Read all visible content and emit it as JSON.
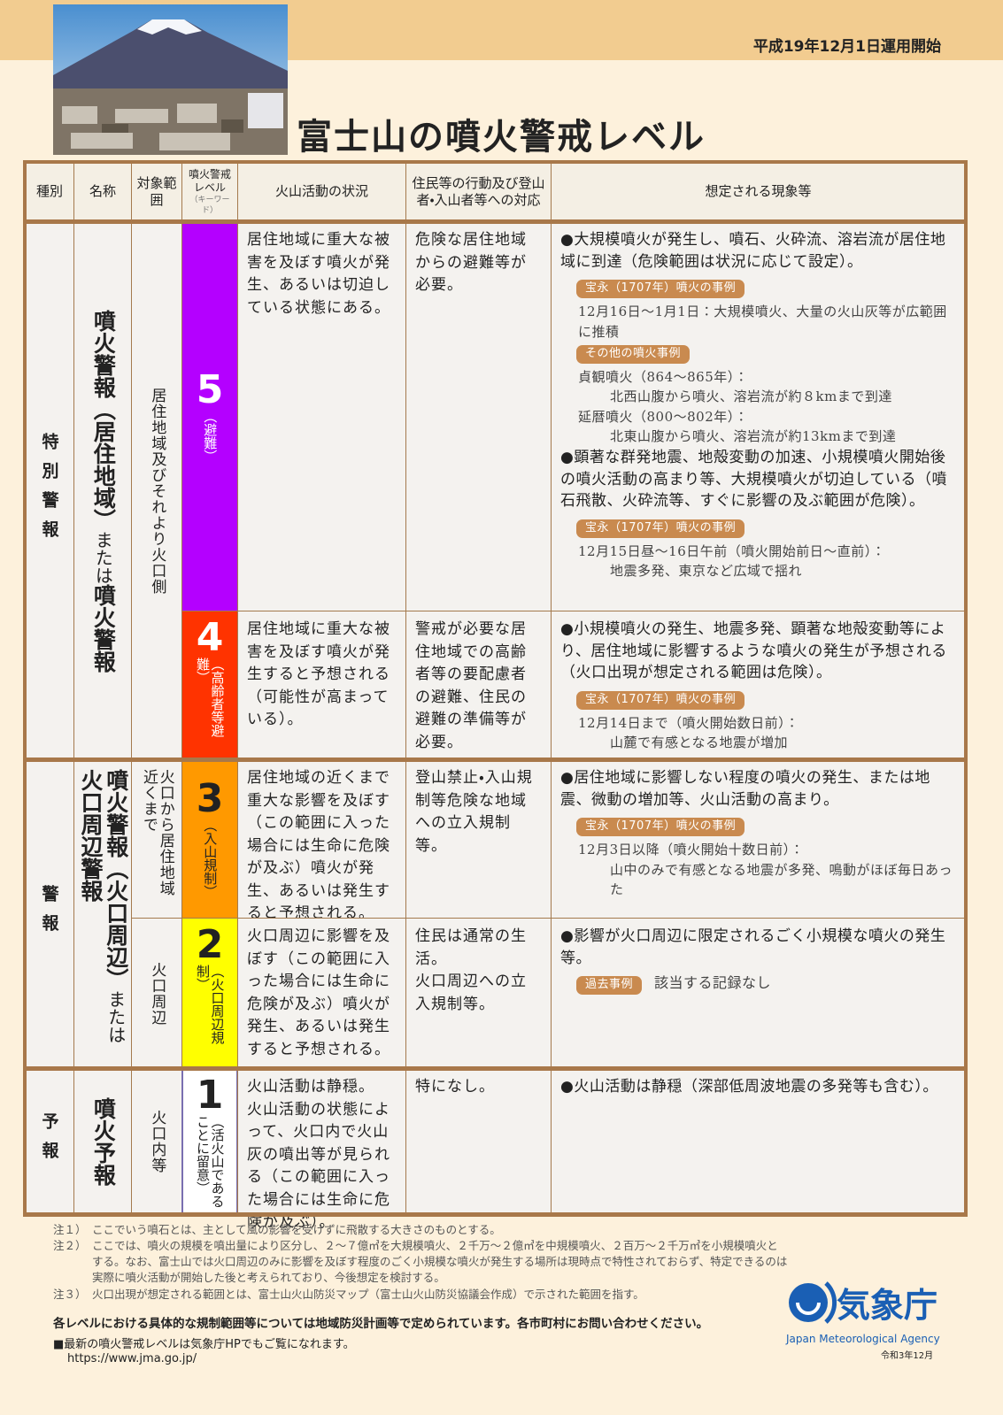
{
  "header": {
    "date": "平成19年12月1日運用開始",
    "title": "富士山の噴火警戒レベル"
  },
  "table": {
    "columns": [
      "種別",
      "名称",
      "対象範囲",
      "噴火警戒レベル",
      "火山活動の状況",
      "住民等の行動及び登山者・入山者等への対応",
      "想定される現象等"
    ],
    "level_column_note": "（キーワード）",
    "groups": [
      {
        "kind": "特別警報",
        "name": [
          "噴火警報（居住地域）",
          "または",
          "噴火警報"
        ],
        "levels": [
          {
            "target": "居住地域及びそれより火口側",
            "level": "5",
            "keyword": "（避難）",
            "color": "#b400ff",
            "text_color": "#ffffff",
            "situation": [
              "居住地域に重大な被害を及ぼす噴火が発生、あるいは切迫している状態にある。"
            ],
            "action": [
              "危険な居住地域からの避難等が必要。"
            ],
            "phenomena": [
              {
                "text": "●大規模噴火が発生し、噴石、火砕流、溶岩流が居住地域に到達（危険範囲は状況に応じて設定）。",
                "examples": [
                  {
                    "tag": "宝永（1707年）噴火の事例",
                    "items": [
                      {
                        "head": "12月16日～1月1日：大規模噴火、大量の火山灰等が広範囲に推積"
                      }
                    ]
                  },
                  {
                    "tag": "その他の噴火事例",
                    "items": [
                      {
                        "head": "貞観噴火（864～865年）：",
                        "body": "北西山腹から噴火、溶岩流が約８kmまで到達"
                      },
                      {
                        "head": "延暦噴火（800～802年）：",
                        "body": "北東山腹から噴火、溶岩流が約13kmまで到達"
                      }
                    ]
                  }
                ]
              },
              {
                "text": "●顕著な群発地震、地殻変動の加速、小規模噴火開始後の噴火活動の高まり等、大規模噴火が切迫している（噴石飛散、火砕流等、すぐに影響の及ぶ範囲が危険）。",
                "examples": [
                  {
                    "tag": "宝永（1707年）噴火の事例",
                    "items": [
                      {
                        "head": "12月15日昼～16日午前（噴火開始前日～直前）：",
                        "body": "地震多発、東京など広域で揺れ"
                      }
                    ]
                  }
                ]
              }
            ]
          },
          {
            "level": "4",
            "keyword": "（高齢者等避難）",
            "color": "#ff3300",
            "text_color": "#ffffff",
            "situation": [
              "居住地域に重大な被害を及ぼす噴火が発生すると予想される（可能性が高まっている）。"
            ],
            "action": [
              "警戒が必要な居住地域での高齢者等の要配慮者の避難、住民の避難の準備等が必要。"
            ],
            "phenomena": [
              {
                "text": "●小規模噴火の発生、地震多発、顕著な地殻変動等により、居住地域に影響するような噴火の発生が予想される（火口出現が想定される範囲は危険）。",
                "examples": [
                  {
                    "tag": "宝永（1707年）噴火の事例",
                    "items": [
                      {
                        "head": "12月14日まで（噴火開始数日前）：",
                        "body": "山麓で有感となる地震が増加"
                      }
                    ]
                  }
                ]
              }
            ]
          }
        ]
      },
      {
        "kind": "警報",
        "name": [
          "噴火警報（火口周辺）",
          "または",
          "火口周辺警報"
        ],
        "levels": [
          {
            "target": "火口から居住地域近くまで",
            "level": "3",
            "keyword": "（入山規制）",
            "color": "#ff9900",
            "text_color": "#222222",
            "situation": [
              "居住地域の近くまで重大な影響を及ぼす（この範囲に入った場合には生命に危険が及ぶ）噴火が発生、あるいは発生すると予想される。"
            ],
            "action": [
              "登山禁止・入山規制等危険な地域への立入規制等。"
            ],
            "phenomena": [
              {
                "text": "●居住地域に影響しない程度の噴火の発生、または地震、微動の増加等、火山活動の高まり。",
                "examples": [
                  {
                    "tag": "宝永（1707年）噴火の事例",
                    "items": [
                      {
                        "head": "12月3日以降（噴火開始十数日前）：",
                        "body": "山中のみで有感となる地震が多発、鳴動がほぼ毎日あった"
                      }
                    ]
                  }
                ]
              }
            ]
          },
          {
            "target": "火口周辺",
            "level": "2",
            "keyword": "（火口周辺規制）",
            "color": "#ffff00",
            "text_color": "#222222",
            "situation": [
              "火口周辺に影響を及ぼす（この範囲に入った場合には生命に危険が及ぶ）噴火が発生、あるいは発生すると予想される。"
            ],
            "action": [
              "住民は通常の生活。",
              "火口周辺への立入規制等。"
            ],
            "phenomena": [
              {
                "text": "●影響が火口周辺に限定されるごく小規模な噴火の発生等。",
                "examples": [
                  {
                    "tag": "過去事例",
                    "inline": "該当する記録なし"
                  }
                ]
              }
            ]
          }
        ]
      },
      {
        "kind": "予報",
        "name": [
          "噴火予報"
        ],
        "levels": [
          {
            "target": "火口内等",
            "level": "1",
            "keyword": "（活火山であることに留意）",
            "color": "#ffffff",
            "text_color": "#222222",
            "situation": [
              "火山活動は静穏。",
              "火山活動の状態によって、火口内で火山灰の噴出等が見られる（この範囲に入った場合には生命に危険が及ぶ）。"
            ],
            "action": [
              "特になし。"
            ],
            "phenomena": [
              {
                "text": "●火山活動は静穏（深部低周波地震の多発等も含む）。"
              }
            ]
          }
        ]
      }
    ]
  },
  "notes": [
    {
      "label": "注１）",
      "text": "ここでいう噴石とは、主として風の影響を受けずに飛散する大きさのものとする。"
    },
    {
      "label": "注２）",
      "text": "ここでは、噴火の規模を噴出量により区分し、２～７億㎥を大規模噴火、２千万～２億㎥を中規模噴火、２百万～２千万㎥を小規模噴火とする。なお、富士山では火口周辺のみに影響を及ぼす程度のごく小規模な噴火が発生する場所は現時点で特性されておらず、特定できるのは実際に噴火活動が開始した後と考えられており、今後想定を検討する。"
    },
    {
      "label": "注３）",
      "text": "火口出現が想定される範囲とは、富士山火山防災マップ（富士山火山防災協議会作成）で示された範囲を指す。"
    }
  ],
  "footer": {
    "contact": "各レベルにおける具体的な規制範囲等については地域防災計画等で定められています。各市町村にお問い合わせください。",
    "web": "■最新の噴火警戒レベルは気象庁HPでもご覧になれます。",
    "url": "https://www.jma.go.jp/"
  },
  "logo": {
    "name": "気象庁",
    "english": "Japan Meteorological Agency",
    "date": "令和3年12月"
  }
}
